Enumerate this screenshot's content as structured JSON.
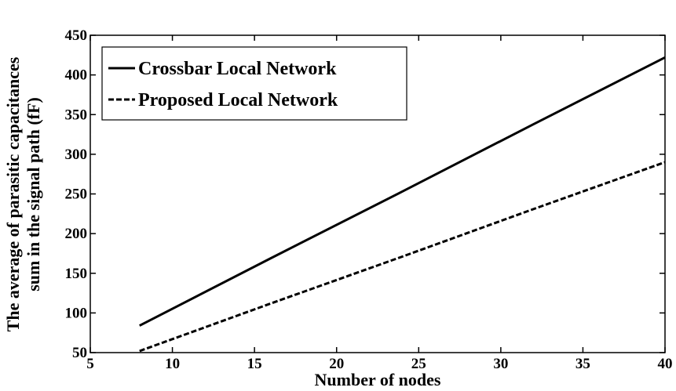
{
  "chart_data": {
    "type": "line",
    "xlabel": "Number of nodes",
    "ylabel": [
      "The average of parasitic capacitances",
      "sum in the signal path (fF)"
    ],
    "x": [
      8,
      16,
      24,
      32,
      40
    ],
    "series": [
      {
        "name": "Crossbar Local Network",
        "color": "#000000",
        "dash": "solid",
        "values": [
          84,
          169,
          253,
          338,
          422
        ]
      },
      {
        "name": "Proposed Local Network",
        "color": "#000000",
        "dash": "dashed",
        "values": [
          52,
          112,
          171,
          231,
          290
        ]
      }
    ],
    "xlim": [
      5,
      40
    ],
    "xticks": [
      5,
      10,
      15,
      20,
      25,
      30,
      35,
      40
    ],
    "ylim": [
      50,
      450
    ],
    "yticks": [
      50,
      100,
      150,
      200,
      250,
      300,
      350,
      400,
      450
    ],
    "grid": false,
    "legend": "upper left"
  }
}
